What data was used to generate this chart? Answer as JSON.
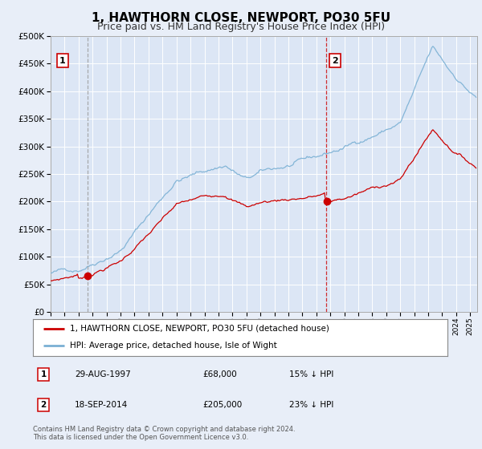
{
  "title": "1, HAWTHORN CLOSE, NEWPORT, PO30 5FU",
  "subtitle": "Price paid vs. HM Land Registry's House Price Index (HPI)",
  "title_fontsize": 11,
  "subtitle_fontsize": 9,
  "background_color": "#e8eef8",
  "plot_bg_color": "#dce6f5",
  "grid_color": "#ffffff",
  "sale1_date": 1997.66,
  "sale1_price": 68000,
  "sale2_date": 2014.72,
  "sale2_price": 205000,
  "ylim": [
    0,
    500000
  ],
  "xlim": [
    1995.0,
    2025.5
  ],
  "legend_label_red": "1, HAWTHORN CLOSE, NEWPORT, PO30 5FU (detached house)",
  "legend_label_blue": "HPI: Average price, detached house, Isle of Wight",
  "annotation1_text": "1",
  "annotation2_text": "2",
  "table_row1": [
    "1",
    "29-AUG-1997",
    "£68,000",
    "15% ↓ HPI"
  ],
  "table_row2": [
    "2",
    "18-SEP-2014",
    "£205,000",
    "23% ↓ HPI"
  ],
  "footer": "Contains HM Land Registry data © Crown copyright and database right 2024.\nThis data is licensed under the Open Government Licence v3.0.",
  "red_color": "#cc0000",
  "blue_color": "#7ab0d4",
  "vline1_color": "#999999",
  "vline2_color": "#cc0000"
}
